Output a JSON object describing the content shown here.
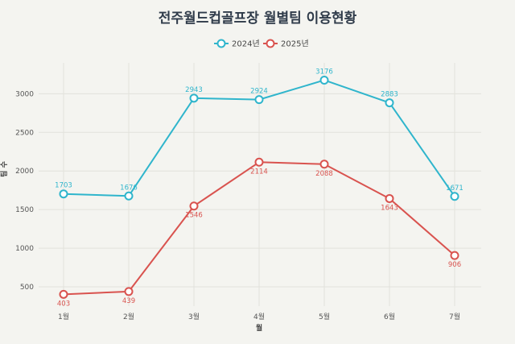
{
  "chart_data": {
    "type": "line",
    "title": "전주월드컵골프장 월별팀 이용현황",
    "xlabel": "월",
    "ylabel": "팀 수",
    "categories": [
      "1월",
      "2월",
      "3월",
      "4월",
      "5월",
      "6월",
      "7월"
    ],
    "series": [
      {
        "name": "2024년",
        "color": "#2fb5cc",
        "values": [
          1703,
          1676,
          2943,
          2924,
          3176,
          2883,
          1671
        ]
      },
      {
        "name": "2025년",
        "color": "#d9534f",
        "values": [
          403,
          439,
          1546,
          2114,
          2088,
          1643,
          906
        ]
      }
    ],
    "yticks": [
      500,
      1000,
      1500,
      2000,
      2500,
      3000
    ],
    "ylim": [
      250,
      3400
    ],
    "grid": true,
    "legend_position": "top-center"
  }
}
